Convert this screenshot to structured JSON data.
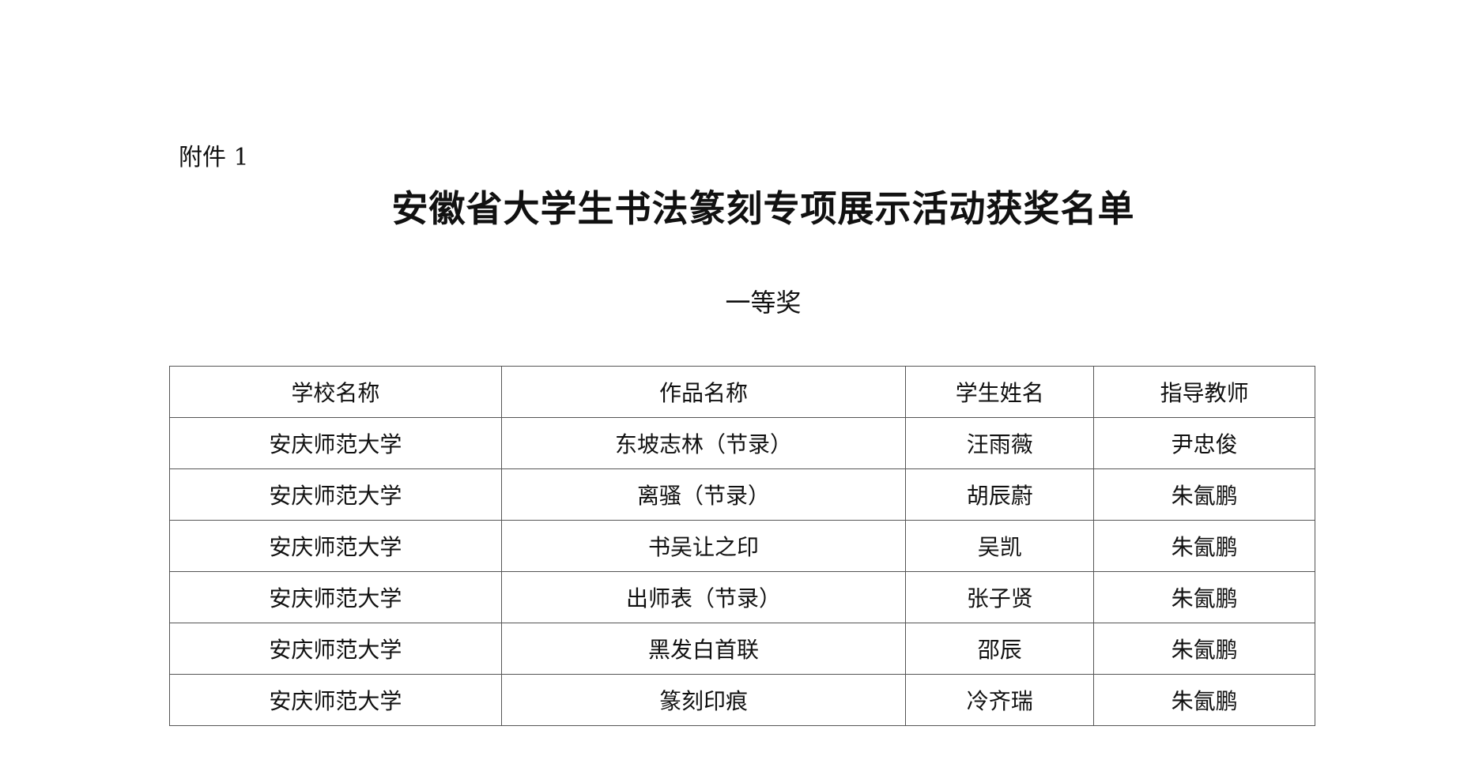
{
  "attachment_label": "附件 1",
  "title": "安徽省大学生书法篆刻专项展示活动获奖名单",
  "award_level": "一等奖",
  "table": {
    "headers": [
      "学校名称",
      "作品名称",
      "学生姓名",
      "指导教师"
    ],
    "rows": [
      [
        "安庆师范大学",
        "东坡志林（节录）",
        "汪雨薇",
        "尹忠俊"
      ],
      [
        "安庆师范大学",
        "离骚（节录）",
        "胡辰蔚",
        "朱氤鹏"
      ],
      [
        "安庆师范大学",
        "书吴让之印",
        "吴凯",
        "朱氤鹏"
      ],
      [
        "安庆师范大学",
        "出师表（节录）",
        "张子贤",
        "朱氤鹏"
      ],
      [
        "安庆师范大学",
        "黑发白首联",
        "邵辰",
        "朱氤鹏"
      ],
      [
        "安庆师范大学",
        "篆刻印痕",
        "冷齐瑞",
        "朱氤鹏"
      ]
    ]
  }
}
